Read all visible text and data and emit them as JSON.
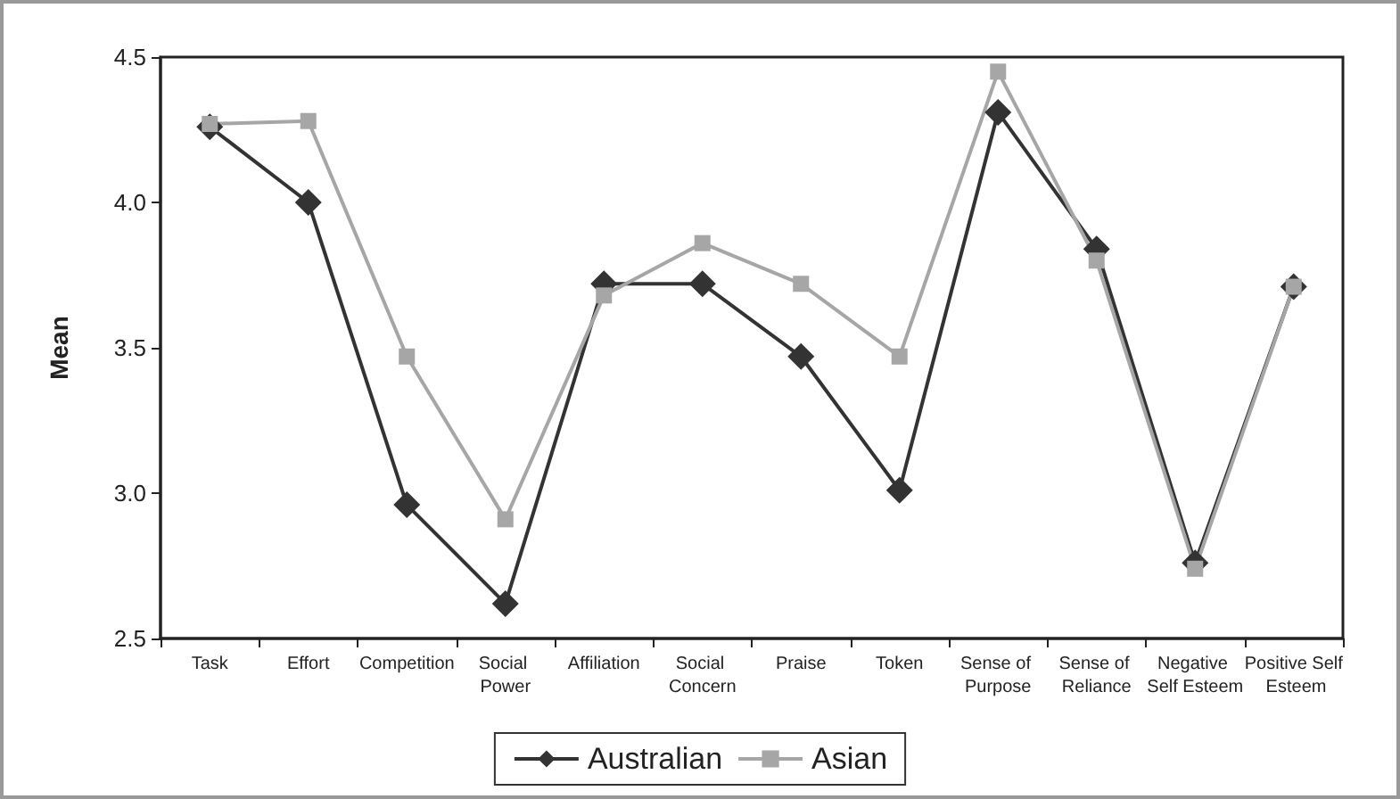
{
  "chart_data": {
    "type": "line",
    "ylabel": "Mean",
    "categories": [
      "Task",
      "Effort",
      "Competition",
      "Social Power",
      "Affiliation",
      "Social Concern",
      "Praise",
      "Token",
      "Sense of Purpose",
      "Sense of Reliance",
      "Negative Self Esteem",
      "Positive Self Esteem"
    ],
    "series": [
      {
        "name": "Australian",
        "color": "#333333",
        "marker": "diamond",
        "values": [
          4.26,
          4.0,
          2.96,
          2.62,
          3.72,
          3.72,
          3.47,
          3.01,
          4.31,
          3.84,
          2.76,
          3.71
        ]
      },
      {
        "name": "Asian",
        "color": "#a6a6a6",
        "marker": "square",
        "values": [
          4.27,
          4.28,
          3.47,
          2.91,
          3.68,
          3.86,
          3.72,
          3.47,
          4.45,
          3.8,
          2.74,
          3.71
        ]
      }
    ],
    "ylim": [
      2.5,
      4.5
    ],
    "yticks": [
      {
        "value": 2.5,
        "label": "2.5"
      },
      {
        "value": 3,
        "label": "3.0"
      },
      {
        "value": 3.5,
        "label": "3.5"
      },
      {
        "value": 4,
        "label": "4.0"
      },
      {
        "value": 4.5,
        "label": "4.5"
      }
    ],
    "grid": false,
    "legend": "bottom",
    "line_style": "solid"
  }
}
